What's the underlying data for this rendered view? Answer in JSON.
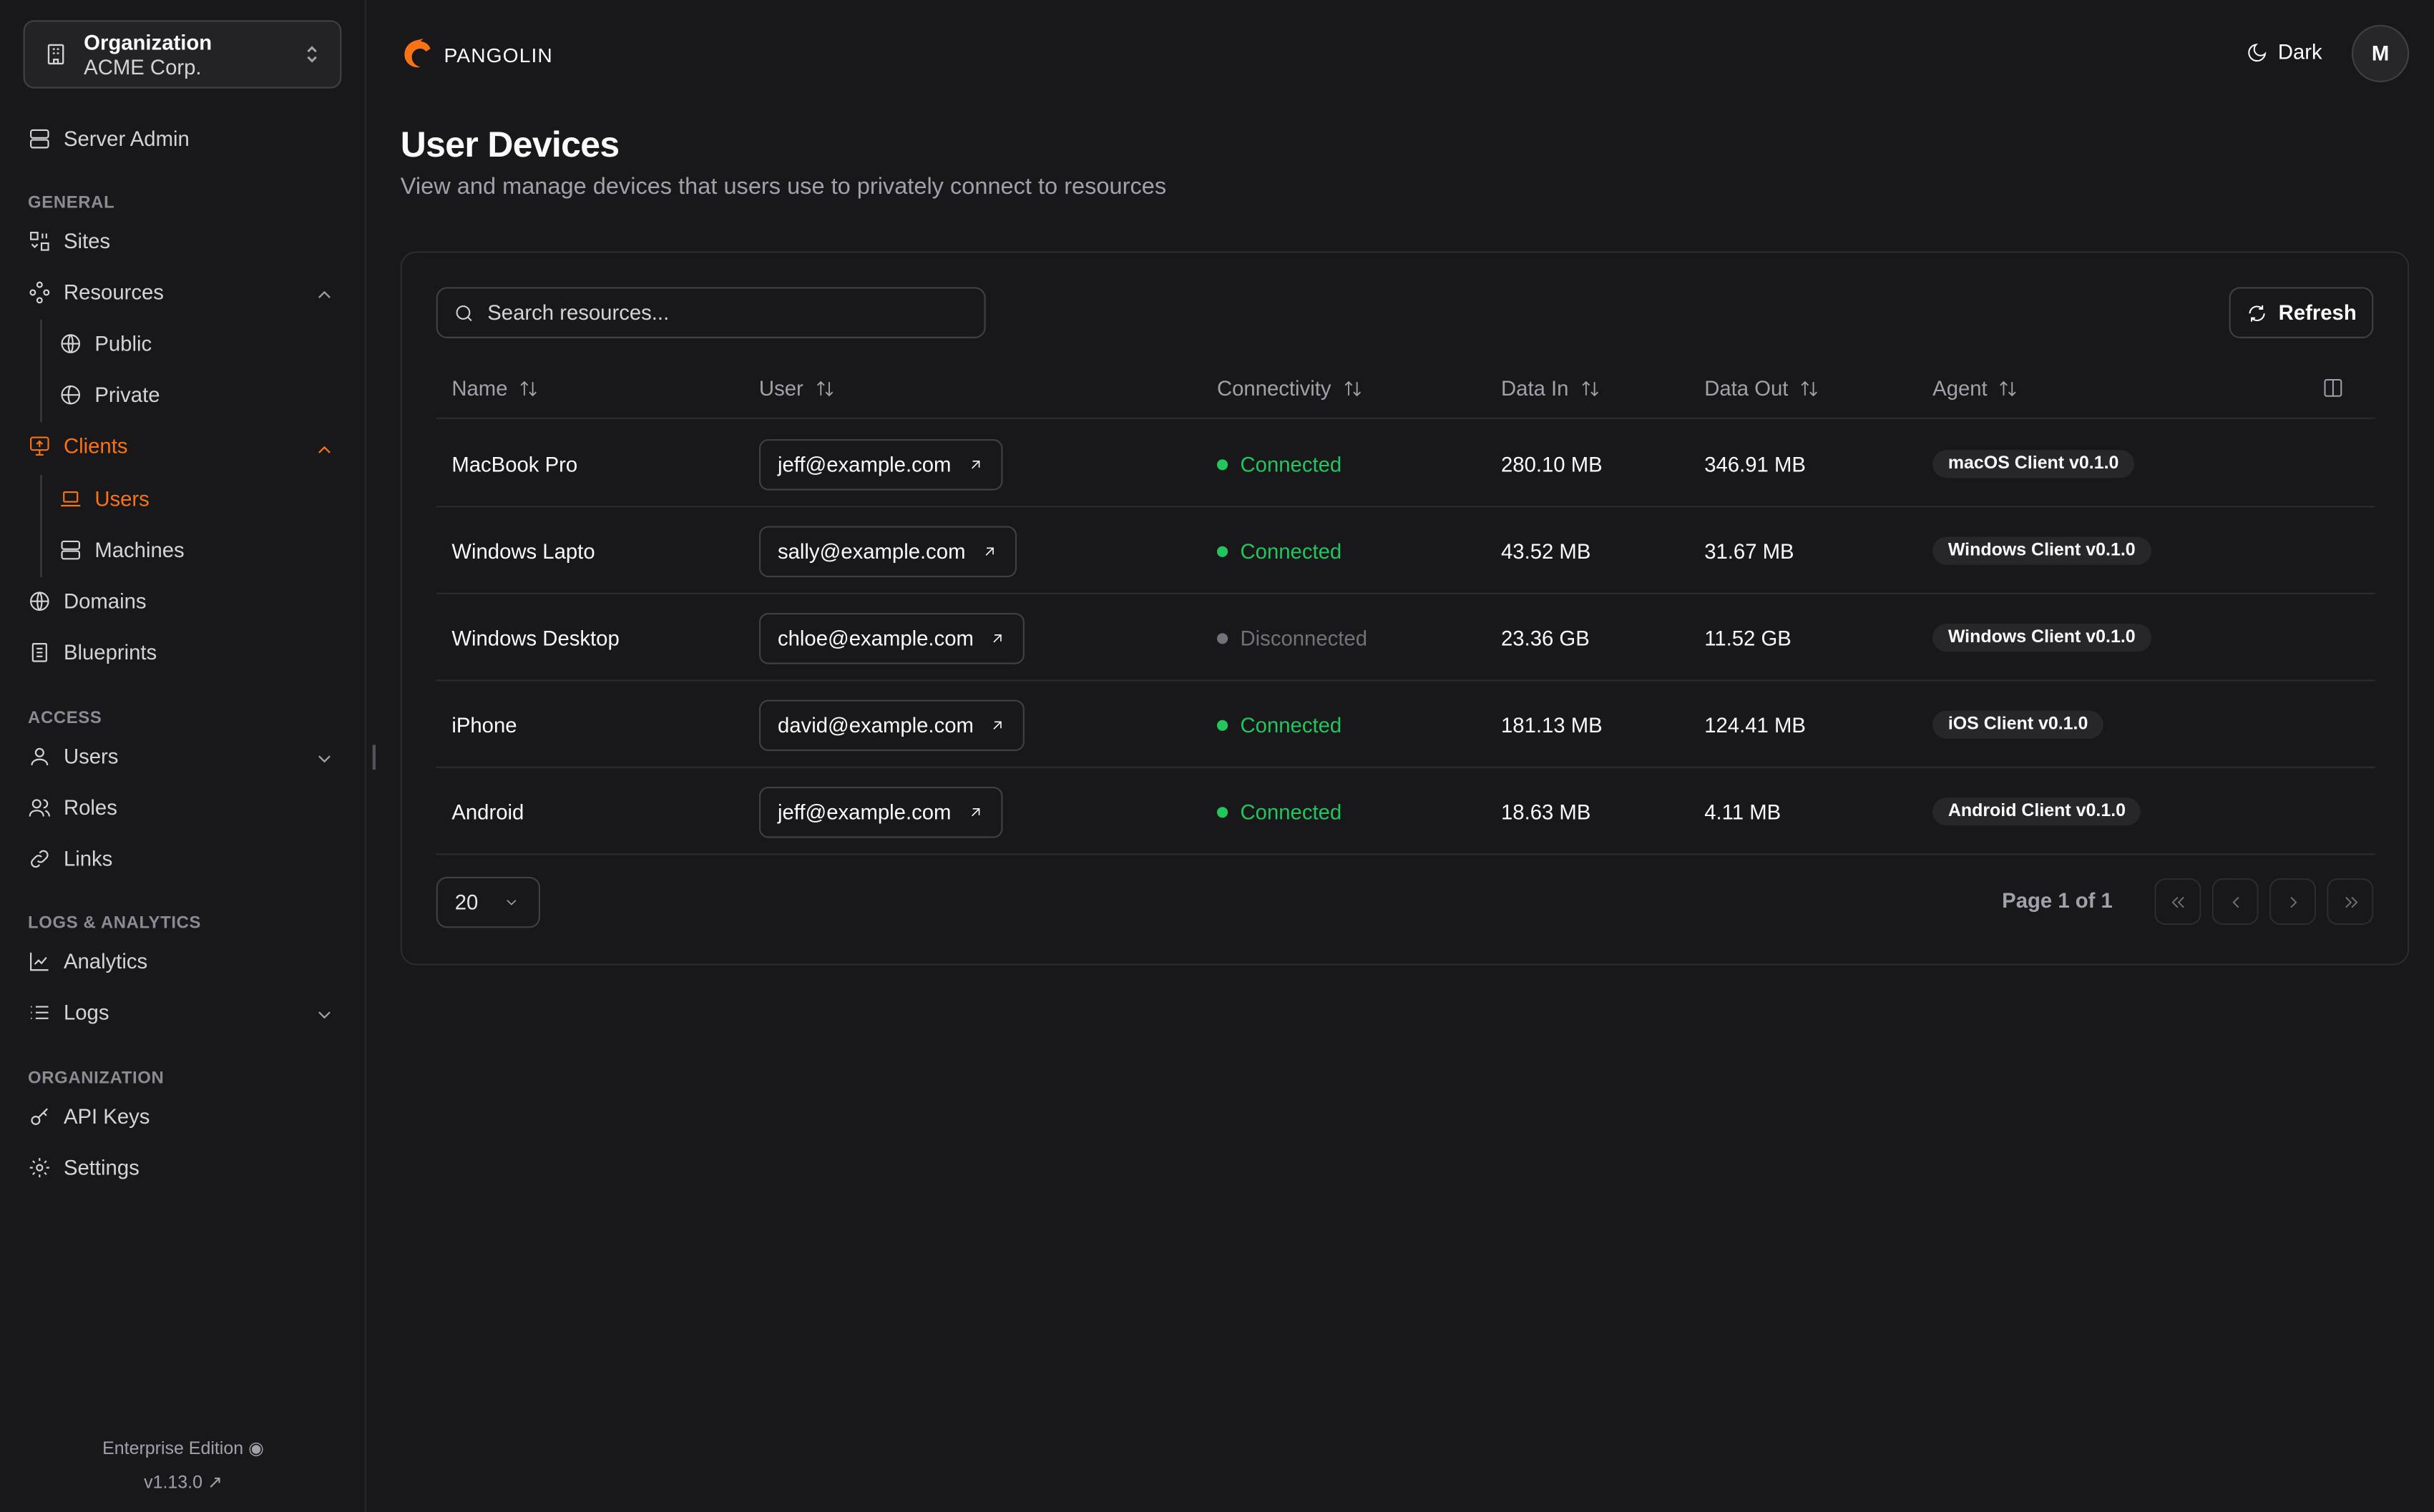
{
  "sidebar": {
    "org_label": "Organization",
    "org_name": "ACME Corp.",
    "server_admin": "Server Admin",
    "sections": {
      "general": "GENERAL",
      "access": "ACCESS",
      "logs": "LOGS & ANALYTICS",
      "organization": "ORGANIZATION"
    },
    "items": {
      "sites": "Sites",
      "resources": "Resources",
      "public": "Public",
      "private": "Private",
      "clients": "Clients",
      "users_client": "Users",
      "machines": "Machines",
      "domains": "Domains",
      "blueprints": "Blueprints",
      "users": "Users",
      "roles": "Roles",
      "links": "Links",
      "analytics": "Analytics",
      "logs": "Logs",
      "api_keys": "API Keys",
      "settings": "Settings"
    },
    "edition": "Enterprise Edition",
    "version": "v1.13.0"
  },
  "header": {
    "brand": "PANGOLIN",
    "theme": "Dark",
    "avatar": "M"
  },
  "page": {
    "title": "User Devices",
    "subtitle": "View and manage devices that users use to privately connect to resources"
  },
  "table": {
    "search_placeholder": "Search resources...",
    "refresh": "Refresh",
    "columns": [
      "Name",
      "User",
      "Connectivity",
      "Data In",
      "Data Out",
      "Agent"
    ],
    "rows": [
      {
        "name": "MacBook Pro",
        "user": "jeff@example.com",
        "status": "Connected",
        "in": "280.10 MB",
        "out": "346.91 MB",
        "agent": "macOS Client v0.1.0"
      },
      {
        "name": "Windows Lapto",
        "user": "sally@example.com",
        "status": "Connected",
        "in": "43.52 MB",
        "out": "31.67 MB",
        "agent": "Windows Client v0.1.0"
      },
      {
        "name": "Windows Desktop",
        "user": "chloe@example.com",
        "status": "Disconnected",
        "in": "23.36 GB",
        "out": "11.52 GB",
        "agent": "Windows Client v0.1.0"
      },
      {
        "name": "iPhone",
        "user": "david@example.com",
        "status": "Connected",
        "in": "181.13 MB",
        "out": "124.41 MB",
        "agent": "iOS Client v0.1.0"
      },
      {
        "name": "Android",
        "user": "jeff@example.com",
        "status": "Connected",
        "in": "18.63 MB",
        "out": "4.11 MB",
        "agent": "Android Client v0.1.0"
      }
    ],
    "page_size": "20",
    "page_info": "Page 1 of 1"
  },
  "colors": {
    "accent": "#f97316",
    "connected": "#22c55e",
    "disconnected": "#71717a"
  }
}
